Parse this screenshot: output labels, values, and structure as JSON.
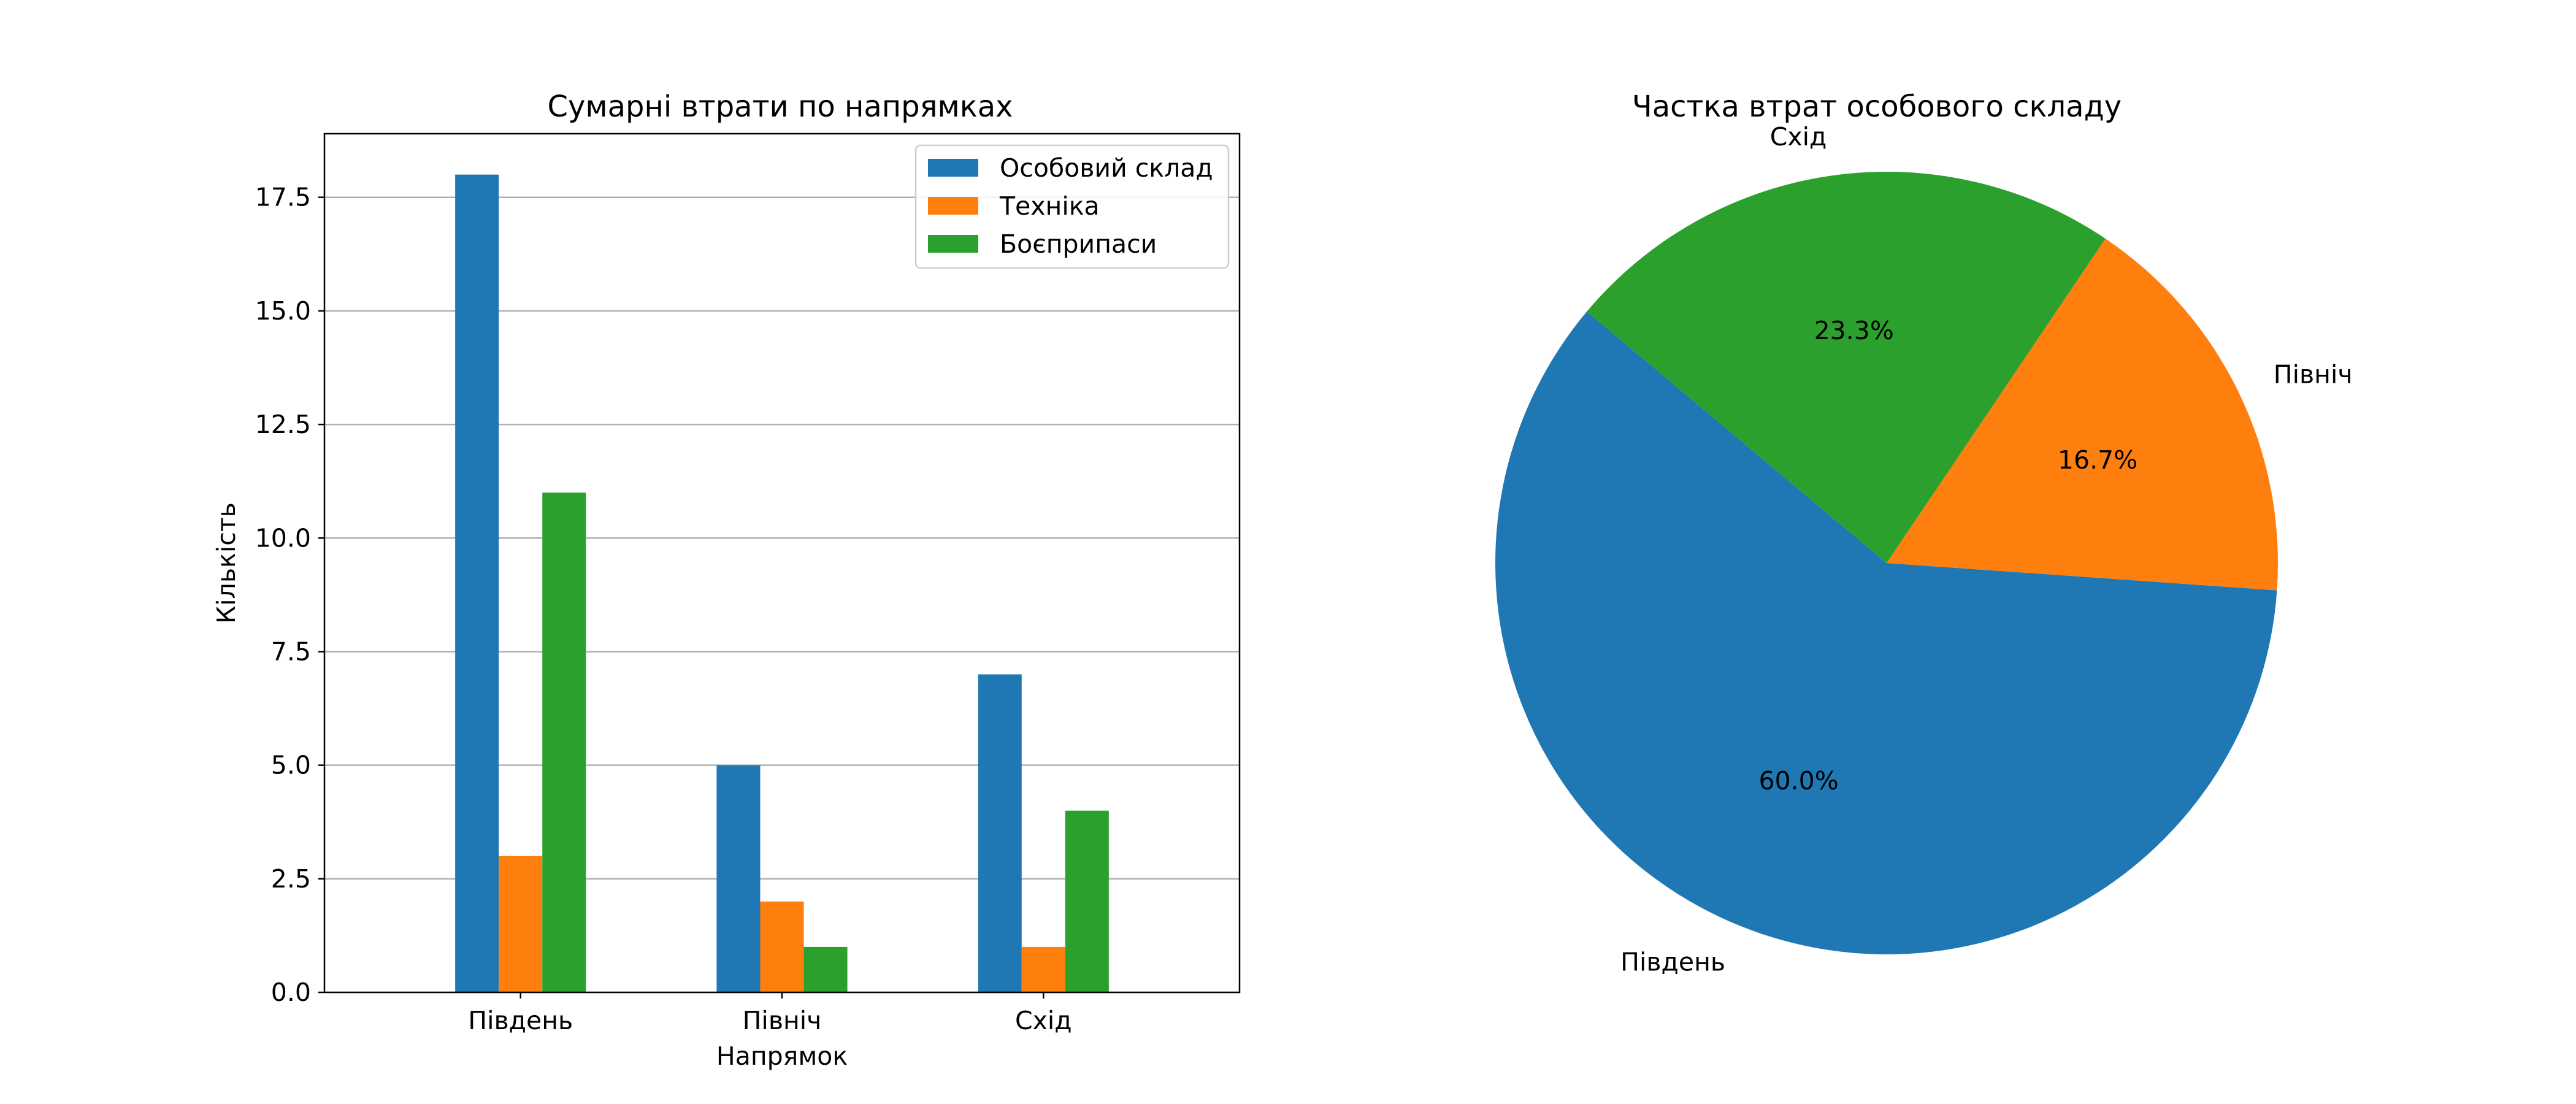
{
  "chart_data": [
    {
      "type": "bar",
      "title": "Сумарні втрати по напрямках",
      "xlabel": "Напрямок",
      "ylabel": "Кількість",
      "categories": [
        "Південь",
        "Північ",
        "Схід"
      ],
      "series": [
        {
          "name": "Особовий склад",
          "values": [
            18,
            5,
            7
          ],
          "color": "#1f77b4"
        },
        {
          "name": "Техніка",
          "values": [
            3,
            2,
            1
          ],
          "color": "#ff7f0e"
        },
        {
          "name": "Боєприпаси",
          "values": [
            11,
            1,
            4
          ],
          "color": "#2ca02c"
        }
      ],
      "ylim": [
        0,
        18.9
      ],
      "yticks": [
        "0.0",
        "2.5",
        "5.0",
        "7.5",
        "10.0",
        "12.5",
        "15.0",
        "17.5"
      ],
      "grid": "y",
      "legend": "top-right"
    },
    {
      "type": "pie",
      "title": "Частка втрат особового складу",
      "slices": [
        {
          "label": "Південь",
          "value": 18,
          "pct": "60.0%",
          "color": "#1f77b4"
        },
        {
          "label": "Північ",
          "value": 5,
          "pct": "16.7%",
          "color": "#ff7f0e"
        },
        {
          "label": "Схід",
          "value": 7,
          "pct": "23.3%",
          "color": "#2ca02c"
        }
      ]
    }
  ]
}
